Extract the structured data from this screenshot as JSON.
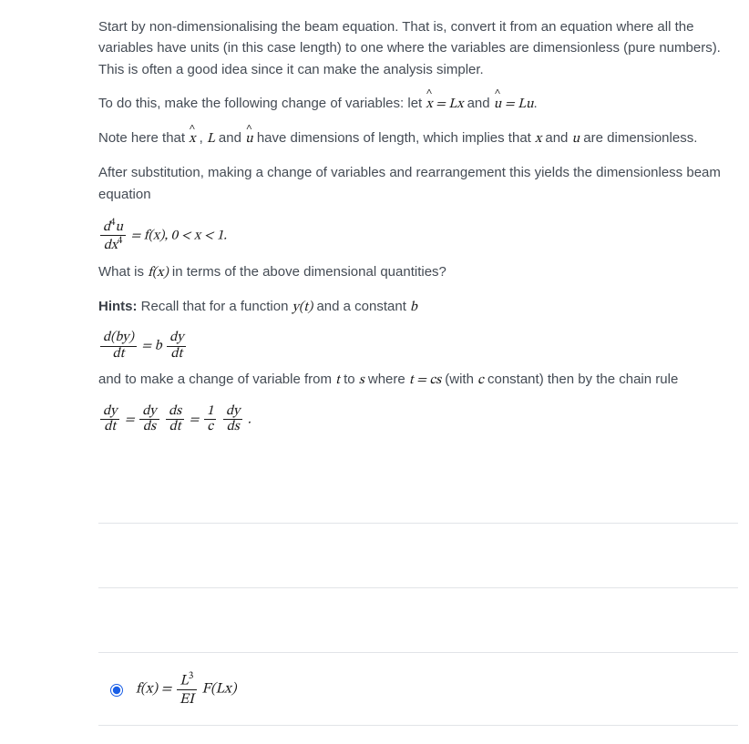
{
  "paragraphs": {
    "p1": "Start by non-dimensionalising the beam equation. That is, convert it from an equation where all the variables have units (in this case length) to one where the variables are dimensionless (pure numbers). This is often a good idea since it can make the analysis simpler.",
    "p2_pre": "To do this, make the following change of variables: let ",
    "p2_eq1_lhs": "x̂",
    "p2_eq1_rhs": "Lx",
    "p2_mid": " and ",
    "p2_eq2_lhs": "û",
    "p2_eq2_rhs": "Lu",
    "p2_post": ".",
    "p3_pre": "Note here that ",
    "p3_v1": "x̂",
    "p3_sep1": " , ",
    "p3_v2": "L",
    "p3_sep2": "  and ",
    "p3_v3": "û",
    "p3_mid": "  have dimensions of length, which implies that ",
    "p3_v4": "x",
    "p3_sep3": "  and ",
    "p3_v5": "u",
    "p3_post": " are dimensionless.",
    "p4": "After substitution, making a change of variables and rearrangement this yields the dimensionless beam equation",
    "beam_eq_num": "d⁴u",
    "beam_eq_den": "dx⁴",
    "beam_eq_rhs": " = f(x),    0 < x < 1.",
    "p5_pre": "What is ",
    "p5_fx": "f(x)",
    "p5_post": " in terms of the above dimensional quantities?",
    "hints_label": "Hints:",
    "hints_text_pre": " Recall that for a function ",
    "hints_yt": "y(t)",
    "hints_text_mid": "  and a constant ",
    "hints_b": "b",
    "eq2_lhs_num": "d(by)",
    "eq2_lhs_den": "dt",
    "eq2_eq": " = b",
    "eq2_rhs_num": "dy",
    "eq2_rhs_den": "dt",
    "p6_pre": "and to make a change of variable from ",
    "p6_t": "t",
    "p6_mid1": "  to ",
    "p6_s": "s",
    "p6_mid2": "  where ",
    "p6_tcs": "t = cs",
    "p6_mid3": "  (with ",
    "p6_c": "c",
    "p6_post": "  constant) then by the chain rule",
    "eq3_a_num": "dy",
    "eq3_a_den": "dt",
    "eq3_eq1": " = ",
    "eq3_b_num": "dy",
    "eq3_b_den": "ds",
    "eq3_c_num": "ds",
    "eq3_c_den": "dt",
    "eq3_eq2": " = ",
    "eq3_d_num": "1",
    "eq3_d_den": "c",
    "eq3_e_num": "dy",
    "eq3_e_den": "ds",
    "eq3_dot": " ."
  },
  "options": {
    "opt3_prefix": "f(x) = ",
    "opt3_frac_num": "L³",
    "opt3_frac_den": "EI",
    "opt3_suffix": " F(Lx)"
  },
  "styling": {
    "body_color": "#3b3b3b",
    "math_color": "#1a1a1a",
    "rule_color": "#e2e4e8",
    "radio_accent": "#195ee6",
    "background": "#ffffff",
    "font_size_body": 15,
    "font_size_option_eq": 16
  }
}
